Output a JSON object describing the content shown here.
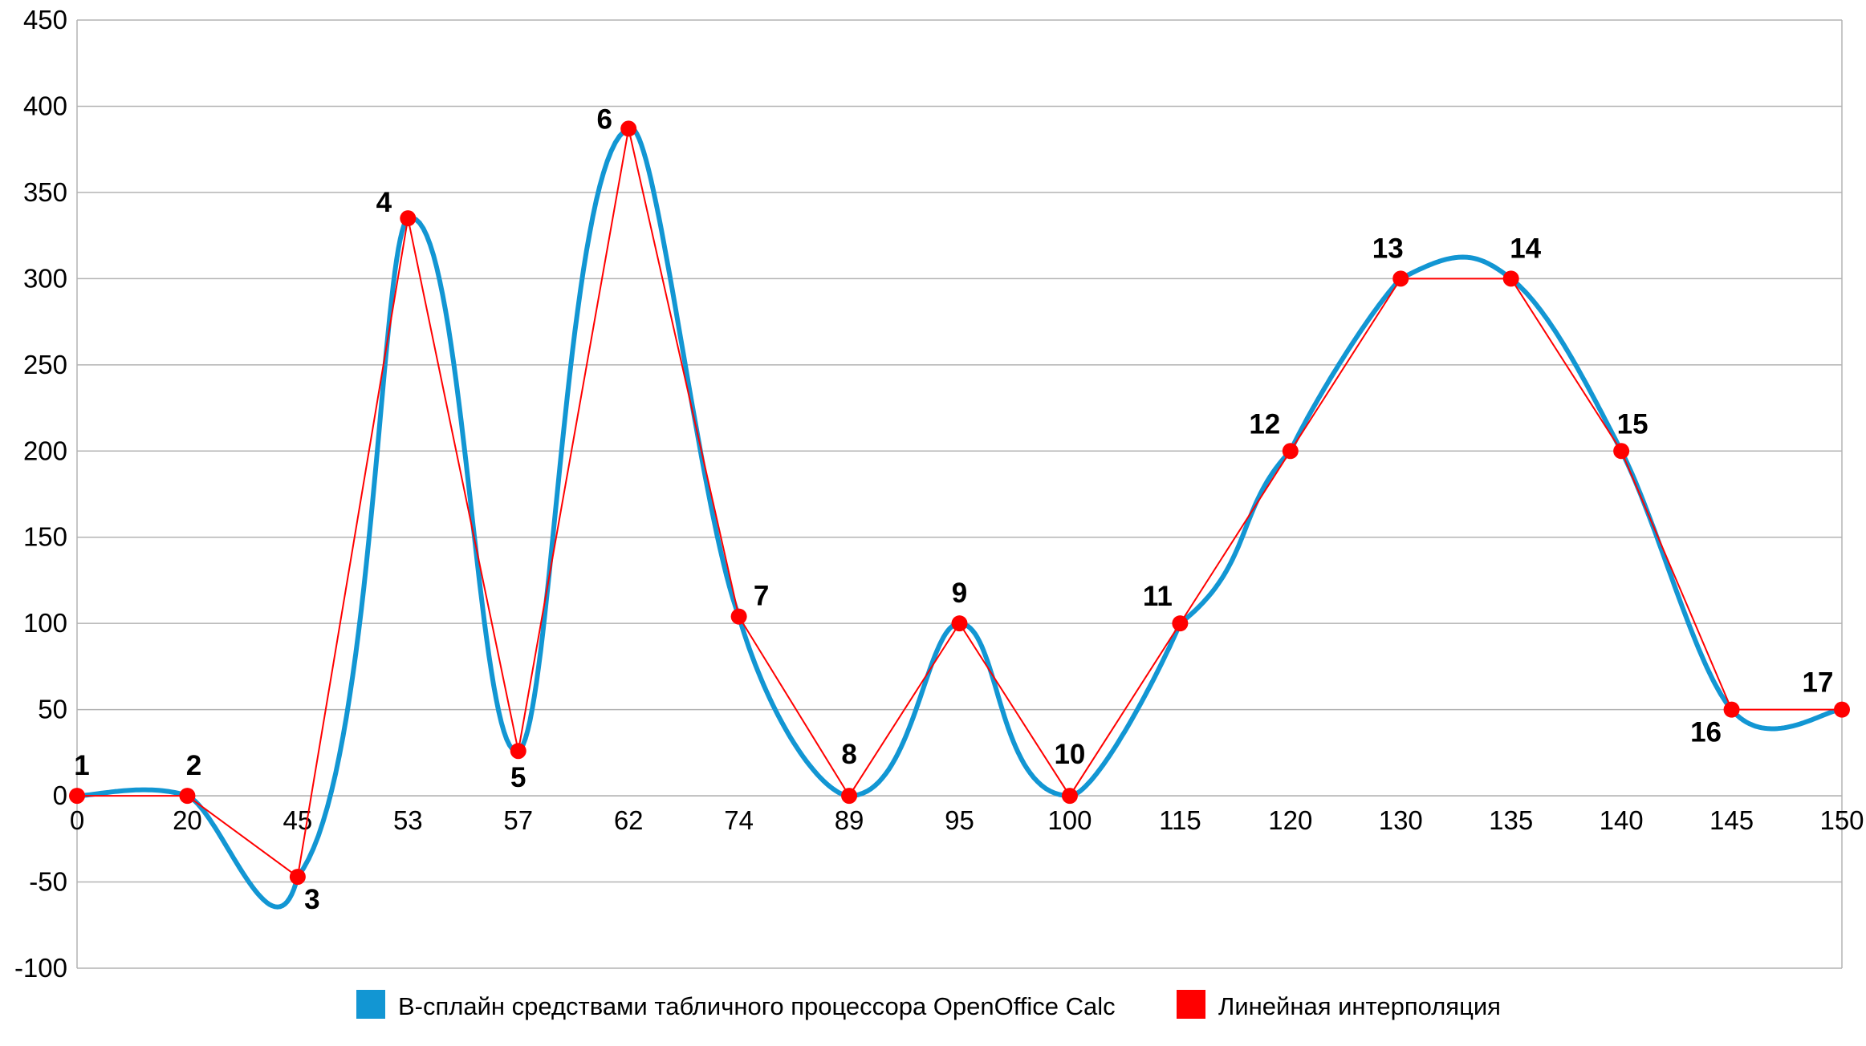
{
  "chart_data": {
    "type": "line",
    "title": "",
    "xlabel": "",
    "ylabel": "",
    "ylim": [
      -100,
      450
    ],
    "yticks": [
      "-100",
      "-50",
      "0",
      "50",
      "100",
      "150",
      "200",
      "250",
      "300",
      "350",
      "400",
      "450"
    ],
    "categories": [
      "0",
      "20",
      "45",
      "53",
      "57",
      "62",
      "74",
      "89",
      "95",
      "100",
      "115",
      "120",
      "130",
      "135",
      "140",
      "145",
      "150"
    ],
    "point_labels": [
      "1",
      "2",
      "3",
      "4",
      "5",
      "6",
      "7",
      "8",
      "9",
      "10",
      "11",
      "12",
      "13",
      "14",
      "15",
      "16",
      "17"
    ],
    "series": [
      {
        "name": "B-сплайн средствами табличного процессора OpenOffice Calc",
        "color": "#1296d3",
        "style": "smooth",
        "x": [
          0,
          20,
          45,
          53,
          57,
          62,
          74,
          89,
          95,
          100,
          115,
          120,
          130,
          135,
          140,
          145,
          150
        ],
        "values": [
          0,
          0,
          -47,
          335,
          26,
          387,
          104,
          0,
          100,
          0,
          100,
          200,
          300,
          300,
          200,
          50,
          50
        ]
      },
      {
        "name": "Линейная интерполяция",
        "color": "#ff0000",
        "style": "linear",
        "x": [
          0,
          20,
          45,
          53,
          57,
          62,
          74,
          89,
          95,
          100,
          115,
          120,
          130,
          135,
          140,
          145,
          150
        ],
        "values": [
          0,
          0,
          -47,
          335,
          26,
          387,
          104,
          0,
          100,
          0,
          100,
          200,
          300,
          300,
          200,
          50,
          50
        ]
      }
    ],
    "grid": true,
    "legend": "bottom"
  }
}
